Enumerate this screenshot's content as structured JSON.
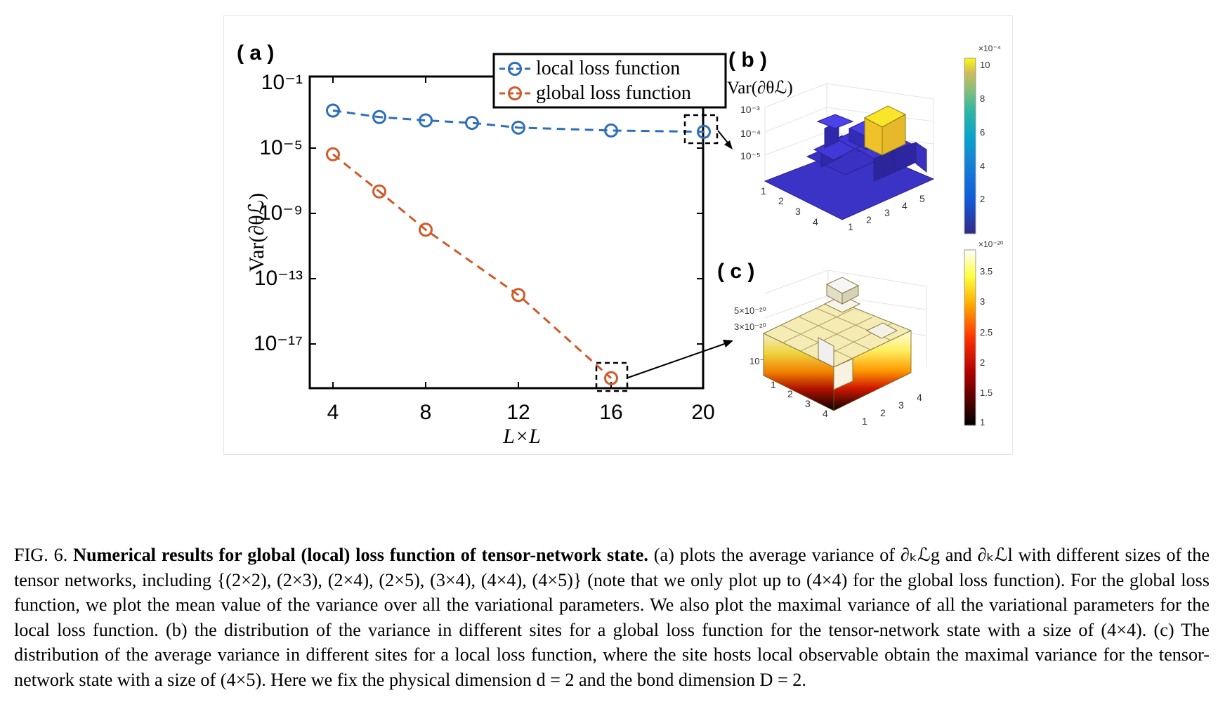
{
  "figure": {
    "panel_a": {
      "label": "( a )",
      "legend": [
        "local loss function",
        "global loss function"
      ],
      "ylabel": "Var(∂θℒ)",
      "xlabel": "L×L"
    },
    "panel_b": {
      "label": "( b )",
      "zlabel": "Var(∂θℒ)",
      "z_ticks": [
        "10⁻³",
        "10⁻⁴",
        "10⁻⁵"
      ],
      "x_ticks": [
        "1",
        "2",
        "3",
        "4"
      ],
      "y_ticks": [
        "1",
        "2",
        "3",
        "4",
        "5"
      ],
      "colorbar_exp": "×10⁻⁴",
      "colorbar_ticks": [
        "10",
        "8",
        "6",
        "4",
        "2"
      ]
    },
    "panel_c": {
      "label": "( c )",
      "z_ticks": [
        "5×10⁻²⁰",
        "3×10⁻²⁰",
        "10⁻²⁰"
      ],
      "x_ticks": [
        "1",
        "2",
        "3",
        "4"
      ],
      "y_ticks": [
        "1",
        "2",
        "3",
        "4"
      ],
      "colorbar_exp": "×10⁻²⁰",
      "colorbar_ticks": [
        "3.5",
        "3",
        "2.5",
        "2",
        "1.5",
        "1"
      ]
    }
  },
  "chart_data": {
    "type": "line",
    "xlabel": "L×L",
    "ylabel": "Var(∂θℒ)",
    "y_scale": "log",
    "x_ticks": [
      4,
      8,
      12,
      16,
      20
    ],
    "x_tick_labels": [
      "4",
      "8",
      "12",
      "16",
      "20"
    ],
    "y_ticks": [
      0.1,
      1e-05,
      1e-09,
      1e-13,
      1e-17
    ],
    "y_tick_labels": [
      "10⁻¹",
      "10⁻⁵",
      "10⁻⁹",
      "10⁻¹³",
      "10⁻¹⁷"
    ],
    "xlim": [
      3.5,
      20
    ],
    "ylim": [
      1e-20,
      0.1
    ],
    "legend_position": "top-right",
    "series": [
      {
        "name": "local loss function",
        "color": "#2e6fb8",
        "x": [
          4,
          6,
          8,
          10,
          12,
          16,
          20
        ],
        "y": [
          0.002,
          0.0008,
          0.0005,
          0.00035,
          0.00018,
          0.00012,
          0.0001
        ]
      },
      {
        "name": "global loss function",
        "color": "#d05a2a",
        "x": [
          4,
          6,
          8,
          12,
          16
        ],
        "y": [
          4.2e-06,
          2.2e-08,
          1e-10,
          1e-14,
          8e-20
        ]
      }
    ]
  },
  "caption": {
    "fig_label": "FIG. 6.",
    "title": "Numerical results for global (local) loss function of tensor-network state.",
    "body": "(a) plots the average variance of ∂ₖℒg and ∂ₖℒl with different sizes of the tensor networks, including {(2×2), (2×3), (2×4), (2×5), (3×4), (4×4), (4×5)} (note that we only plot up to (4×4) for the global loss function). For the global loss function, we plot the mean value of the variance over all the variational parameters. We also plot the maximal variance of all the variational parameters for the local loss function. (b) the distribution of the variance in different sites for a global loss function for the tensor-network state with a size of (4×4). (c) The distribution of the average variance in different sites for a local loss function, where the site hosts local observable obtain the maximal variance for the tensor-network state with a size of (4×5). Here we fix the physical dimension d = 2 and the bond dimension D = 2."
  }
}
